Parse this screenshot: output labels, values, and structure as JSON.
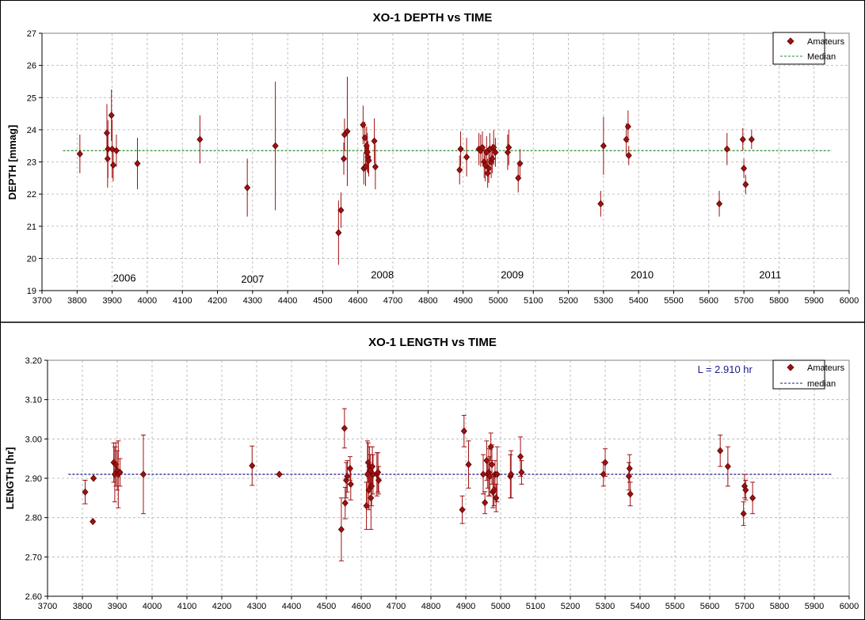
{
  "chart_data": [
    {
      "id": "depth",
      "type": "scatter",
      "title": "XO-1 DEPTH vs TIME",
      "xlabel": "",
      "ylabel": "DEPTH [mmag]",
      "xlim": [
        3700,
        6000
      ],
      "ylim": [
        19,
        27
      ],
      "x_ticks": [
        "3700",
        "3800",
        "3900",
        "4000",
        "4100",
        "4200",
        "4300",
        "4400",
        "4500",
        "4600",
        "4700",
        "4800",
        "4900",
        "5000",
        "5100",
        "5200",
        "5300",
        "5400",
        "5500",
        "5600",
        "5700",
        "5800",
        "5900",
        "6000"
      ],
      "y_ticks": [
        "19",
        "20",
        "21",
        "22",
        "23",
        "24",
        "25",
        "26",
        "27"
      ],
      "grid": "on",
      "legend_position": "top-right",
      "colors": {
        "points": "#a01010",
        "median": "#2e8b2e",
        "marker_fill": "#a01010"
      },
      "median": {
        "name": "Median",
        "value": 23.35,
        "x_range": [
          3760,
          5950
        ]
      },
      "series": [
        {
          "name": "Amateurs",
          "points": [
            [
              3808,
              23.25,
              0.6
            ],
            [
              3885,
              23.9,
              0.9
            ],
            [
              3887,
              23.1,
              0.9
            ],
            [
              3888,
              23.4,
              0.9
            ],
            [
              3898,
              24.45,
              0.8
            ],
            [
              3900,
              23.4,
              0.9
            ],
            [
              3903,
              22.9,
              0.5
            ],
            [
              3912,
              23.35,
              0.5
            ],
            [
              3972,
              22.95,
              0.8
            ],
            [
              4150,
              23.7,
              0.75
            ],
            [
              4285,
              22.2,
              0.9
            ],
            [
              4365,
              23.5,
              2.0
            ],
            [
              4545,
              20.8,
              1.0
            ],
            [
              4552,
              21.5,
              0.55
            ],
            [
              4560,
              23.1,
              0.5
            ],
            [
              4562,
              23.85,
              0.5
            ],
            [
              4570,
              23.95,
              1.7
            ],
            [
              4615,
              24.15,
              0.6
            ],
            [
              4617,
              22.8,
              0.5
            ],
            [
              4620,
              23.75,
              0.5
            ],
            [
              4622,
              22.85,
              0.6
            ],
            [
              4625,
              23.5,
              0.6
            ],
            [
              4627,
              23.3,
              0.6
            ],
            [
              4629,
              23.15,
              0.5
            ],
            [
              4631,
              23.05,
              0.5
            ],
            [
              4647,
              23.65,
              0.7
            ],
            [
              4650,
              22.85,
              0.7
            ],
            [
              4890,
              22.75,
              0.45
            ],
            [
              4893,
              23.4,
              0.55
            ],
            [
              4910,
              23.15,
              0.6
            ],
            [
              4945,
              23.4,
              0.5
            ],
            [
              4950,
              23.35,
              0.5
            ],
            [
              4955,
              23.45,
              0.5
            ],
            [
              4960,
              23.0,
              0.5
            ],
            [
              4963,
              22.9,
              0.5
            ],
            [
              4967,
              23.3,
              0.5
            ],
            [
              4970,
              22.65,
              0.45
            ],
            [
              4973,
              22.8,
              0.45
            ],
            [
              4976,
              23.4,
              0.5
            ],
            [
              4980,
              23.0,
              0.5
            ],
            [
              4983,
              23.1,
              0.45
            ],
            [
              4987,
              23.45,
              0.55
            ],
            [
              4992,
              23.3,
              0.45
            ],
            [
              5027,
              23.3,
              0.55
            ],
            [
              5030,
              23.45,
              0.55
            ],
            [
              5057,
              22.5,
              0.45
            ],
            [
              5062,
              22.95,
              0.45
            ],
            [
              5292,
              21.7,
              0.4
            ],
            [
              5300,
              23.5,
              0.9
            ],
            [
              5365,
              23.7,
              0.5
            ],
            [
              5370,
              24.1,
              0.5
            ],
            [
              5372,
              23.2,
              0.3
            ],
            [
              5630,
              21.7,
              0.4
            ],
            [
              5652,
              23.4,
              0.5
            ],
            [
              5697,
              23.7,
              0.35
            ],
            [
              5700,
              22.8,
              0.3
            ],
            [
              5705,
              22.3,
              0.3
            ],
            [
              5722,
              23.7,
              0.3
            ]
          ]
        }
      ],
      "annotations": [
        {
          "text": "2006",
          "x": 3935,
          "y": 19.28
        },
        {
          "text": "2007",
          "x": 4300,
          "y": 19.25
        },
        {
          "text": "2008",
          "x": 4670,
          "y": 19.38
        },
        {
          "text": "2009",
          "x": 5040,
          "y": 19.38
        },
        {
          "text": "2010",
          "x": 5410,
          "y": 19.38
        },
        {
          "text": "2011",
          "x": 5775,
          "y": 19.38
        }
      ]
    },
    {
      "id": "length",
      "type": "scatter",
      "title": "XO-1 LENGTH vs TIME",
      "xlabel": "",
      "ylabel": "LENGTH [hr]",
      "xlim": [
        3700,
        6000
      ],
      "ylim": [
        2.6,
        3.2
      ],
      "x_ticks": [
        "3700",
        "3800",
        "3900",
        "4000",
        "4100",
        "4200",
        "4300",
        "4400",
        "4500",
        "4600",
        "4700",
        "4800",
        "4900",
        "5000",
        "5100",
        "5200",
        "5300",
        "5400",
        "5500",
        "5600",
        "5700",
        "5800",
        "5900",
        "6000"
      ],
      "y_ticks": [
        "2.60",
        "2.70",
        "2.80",
        "2.90",
        "3.00",
        "3.10",
        "3.20"
      ],
      "grid": "on",
      "legend_position": "top-right",
      "colors": {
        "points": "#a01010",
        "median": "#1a1a8c",
        "marker_fill": "#a01010"
      },
      "median": {
        "name": "median",
        "value": 2.91,
        "x_range": [
          3760,
          5950
        ]
      },
      "note": {
        "text": "L = 2.910 hr",
        "x": 5565,
        "y": 3.168
      },
      "series": [
        {
          "name": "Amateurs",
          "points": [
            [
              3808,
              2.865,
              0.03
            ],
            [
              3830,
              2.79,
              0.0
            ],
            [
              3832,
              2.9,
              0.0
            ],
            [
              3890,
              2.94,
              0.05
            ],
            [
              3893,
              2.91,
              0.07
            ],
            [
              3896,
              2.935,
              0.055
            ],
            [
              3900,
              2.92,
              0.05
            ],
            [
              3903,
              2.91,
              0.085
            ],
            [
              3908,
              2.915,
              0.035
            ],
            [
              3975,
              2.91,
              0.1
            ],
            [
              4287,
              2.932,
              0.05
            ],
            [
              4365,
              2.91,
              0.0
            ],
            [
              4543,
              2.77,
              0.08
            ],
            [
              4552,
              3.027,
              0.05
            ],
            [
              4554,
              2.837,
              0.04
            ],
            [
              4557,
              2.895,
              0.045
            ],
            [
              4560,
              2.905,
              0.04
            ],
            [
              4568,
              2.925,
              0.03
            ],
            [
              4570,
              2.885,
              0.04
            ],
            [
              4615,
              2.83,
              0.06
            ],
            [
              4618,
              2.91,
              0.085
            ],
            [
              4620,
              2.94,
              0.05
            ],
            [
              4622,
              2.87,
              0.05
            ],
            [
              4624,
              2.93,
              0.05
            ],
            [
              4626,
              2.92,
              0.04
            ],
            [
              4628,
              2.85,
              0.08
            ],
            [
              4630,
              2.88,
              0.05
            ],
            [
              4632,
              2.93,
              0.05
            ],
            [
              4634,
              2.91,
              0.05
            ],
            [
              4645,
              2.91,
              0.055
            ],
            [
              4648,
              2.915,
              0.05
            ],
            [
              4650,
              2.895,
              0.035
            ],
            [
              4890,
              2.82,
              0.035
            ],
            [
              4895,
              3.02,
              0.04
            ],
            [
              4908,
              2.935,
              0.06
            ],
            [
              4950,
              2.91,
              0.05
            ],
            [
              4955,
              2.838,
              0.028
            ],
            [
              4960,
              2.945,
              0.05
            ],
            [
              4963,
              2.91,
              0.035
            ],
            [
              4966,
              2.915,
              0.06
            ],
            [
              4969,
              2.905,
              0.05
            ],
            [
              4972,
              2.98,
              0.035
            ],
            [
              4975,
              2.935,
              0.05
            ],
            [
              4978,
              2.865,
              0.04
            ],
            [
              4981,
              2.87,
              0.04
            ],
            [
              4984,
              2.91,
              0.035
            ],
            [
              4987,
              2.85,
              0.035
            ],
            [
              4990,
              2.91,
              0.07
            ],
            [
              5028,
              2.905,
              0.055
            ],
            [
              5030,
              2.91,
              0.06
            ],
            [
              5057,
              2.955,
              0.05
            ],
            [
              5060,
              2.915,
              0.03
            ],
            [
              5295,
              2.91,
              0.03
            ],
            [
              5300,
              2.94,
              0.035
            ],
            [
              5368,
              2.905,
              0.035
            ],
            [
              5370,
              2.925,
              0.035
            ],
            [
              5372,
              2.86,
              0.03
            ],
            [
              5630,
              2.97,
              0.04
            ],
            [
              5652,
              2.93,
              0.05
            ],
            [
              5697,
              2.81,
              0.03
            ],
            [
              5700,
              2.88,
              0.03
            ],
            [
              5703,
              2.87,
              0.025
            ],
            [
              5723,
              2.85,
              0.04
            ]
          ]
        }
      ]
    }
  ]
}
